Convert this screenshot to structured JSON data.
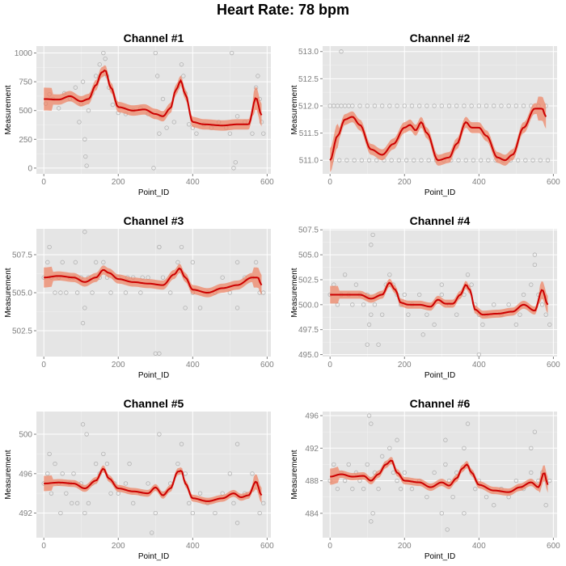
{
  "page": {
    "title": "Heart Rate: 78 bpm"
  },
  "style": {
    "panel_bg": "#e5e5e5",
    "grid_major": "#ffffff",
    "point_color": "#b3b3b3",
    "ribbon_color": "#f08060",
    "line_color": "#cc0000"
  },
  "chart_data": [
    {
      "type": "scatter",
      "title": "Channel #1",
      "xlabel": "Point_ID",
      "ylabel": "Measurement",
      "xlim": [
        -20,
        610
      ],
      "ylim": [
        -50,
        1060
      ],
      "x_ticks": [
        0,
        200,
        400,
        600
      ],
      "y_ticks": [
        0,
        250,
        500,
        750,
        1000
      ],
      "y_tick_labels": [
        "0",
        "250",
        "500",
        "750",
        "1000"
      ],
      "smooth": {
        "x": [
          0,
          40,
          70,
          100,
          120,
          140,
          155,
          165,
          180,
          200,
          240,
          270,
          300,
          320,
          340,
          355,
          368,
          380,
          400,
          430,
          480,
          520,
          550,
          570,
          585
        ],
        "y": [
          600,
          595,
          625,
          580,
          600,
          720,
          830,
          850,
          700,
          530,
          500,
          510,
          470,
          450,
          520,
          680,
          760,
          640,
          400,
          380,
          370,
          380,
          380,
          610,
          460
        ]
      },
      "ribbon_halfwidth": 45,
      "points": {
        "x": [
          5,
          15,
          25,
          40,
          55,
          70,
          85,
          95,
          100,
          105,
          110,
          112,
          115,
          120,
          130,
          140,
          150,
          160,
          165,
          170,
          175,
          185,
          200,
          220,
          240,
          260,
          280,
          295,
          300,
          305,
          310,
          315,
          320,
          330,
          350,
          360,
          370,
          375,
          380,
          390,
          400,
          410,
          430,
          450,
          470,
          490,
          500,
          505,
          510,
          515,
          520,
          540,
          560,
          570,
          575,
          580,
          585,
          590
        ],
        "y": [
          560,
          640,
          600,
          520,
          650,
          600,
          700,
          400,
          560,
          750,
          250,
          100,
          20,
          500,
          650,
          800,
          900,
          1000,
          950,
          800,
          700,
          550,
          480,
          470,
          500,
          520,
          470,
          0,
          1000,
          800,
          300,
          450,
          600,
          350,
          400,
          700,
          900,
          800,
          650,
          380,
          350,
          300,
          380,
          350,
          400,
          350,
          300,
          1000,
          0,
          50,
          450,
          400,
          300,
          700,
          800,
          600,
          400,
          300
        ]
      }
    },
    {
      "type": "scatter",
      "title": "Channel #2",
      "xlabel": "Point_ID",
      "ylabel": "Measurement",
      "xlim": [
        -20,
        610
      ],
      "ylim": [
        510.75,
        513.1
      ],
      "x_ticks": [
        0,
        200,
        400,
        600
      ],
      "y_ticks": [
        511.0,
        511.5,
        512.0,
        512.5,
        513.0
      ],
      "y_tick_labels": [
        "511.0",
        "511.5",
        "512.0",
        "512.5",
        "513.0"
      ],
      "smooth": {
        "x": [
          0,
          20,
          40,
          60,
          80,
          110,
          140,
          170,
          200,
          215,
          230,
          245,
          260,
          290,
          320,
          340,
          365,
          380,
          400,
          420,
          450,
          470,
          490,
          520,
          550,
          570,
          580
        ],
        "y": [
          511.0,
          511.45,
          511.75,
          511.8,
          511.65,
          511.2,
          511.1,
          511.3,
          511.6,
          511.65,
          511.55,
          511.7,
          511.5,
          511.0,
          511.05,
          511.3,
          511.7,
          511.6,
          511.6,
          511.45,
          511.05,
          511.0,
          511.1,
          511.6,
          511.95,
          511.95,
          511.8
        ]
      },
      "ribbon_halfwidth": 0.1,
      "points": {
        "x": [
          0,
          10,
          20,
          30,
          40,
          50,
          60,
          80,
          100,
          120,
          140,
          160,
          180,
          200,
          220,
          240,
          260,
          280,
          300,
          320,
          340,
          360,
          380,
          400,
          420,
          440,
          460,
          480,
          500,
          520,
          540,
          560,
          580,
          5,
          25,
          45,
          65,
          85,
          105,
          125,
          145,
          165,
          185,
          205,
          225,
          245,
          265,
          285,
          305,
          325,
          345,
          365,
          385,
          405,
          425,
          445,
          465,
          485,
          505,
          525,
          545,
          565,
          585,
          30
        ],
        "y": [
          512,
          512,
          512,
          512,
          512,
          512,
          512,
          512,
          512,
          512,
          512,
          512,
          512,
          512,
          512,
          512,
          512,
          512,
          512,
          512,
          512,
          512,
          512,
          512,
          512,
          512,
          512,
          512,
          512,
          512,
          512,
          512,
          512,
          511,
          511,
          511,
          511,
          511,
          511,
          511,
          511,
          511,
          511,
          511,
          511,
          511,
          511,
          511,
          511,
          511,
          511,
          511,
          511,
          511,
          511,
          511,
          511,
          511,
          511,
          511,
          511,
          511,
          511,
          513
        ]
      }
    },
    {
      "type": "scatter",
      "title": "Channel #3",
      "xlabel": "Point_ID",
      "ylabel": "Measurement",
      "xlim": [
        -20,
        610
      ],
      "ylim": [
        500.8,
        509.2
      ],
      "x_ticks": [
        0,
        200,
        400,
        600
      ],
      "y_ticks": [
        502.5,
        505.0,
        507.5
      ],
      "y_tick_labels": [
        "502.5",
        "505.0",
        "507.5"
      ],
      "smooth": {
        "x": [
          0,
          40,
          80,
          110,
          140,
          160,
          175,
          200,
          240,
          280,
          320,
          350,
          365,
          380,
          400,
          440,
          480,
          520,
          560,
          575,
          585
        ],
        "y": [
          506.0,
          506.1,
          506.0,
          505.7,
          506.0,
          506.5,
          506.3,
          505.9,
          505.7,
          505.6,
          505.5,
          506.2,
          506.6,
          506.0,
          505.2,
          505.0,
          505.3,
          505.5,
          506.0,
          506.0,
          505.5
        ]
      },
      "ribbon_halfwidth": 0.3,
      "points": {
        "x": [
          0,
          10,
          20,
          30,
          40,
          50,
          60,
          70,
          80,
          90,
          100,
          110,
          120,
          130,
          140,
          150,
          160,
          170,
          180,
          190,
          200,
          220,
          240,
          260,
          280,
          300,
          310,
          320,
          340,
          360,
          370,
          380,
          400,
          420,
          440,
          460,
          480,
          500,
          520,
          540,
          560,
          570,
          580,
          590,
          105,
          110,
          310,
          310,
          380,
          400,
          520,
          15,
          45,
          85,
          225,
          265
        ],
        "y": [
          506,
          507,
          506,
          505,
          506,
          507,
          505,
          506,
          506,
          505,
          506,
          509,
          506,
          505,
          507,
          506,
          507,
          506,
          505,
          506,
          506,
          505,
          506,
          505,
          506,
          501,
          508,
          506,
          505,
          507,
          508,
          506,
          505,
          504,
          505,
          505,
          506,
          505,
          507,
          506,
          506,
          507,
          505,
          505,
          503,
          504,
          501,
          508,
          504,
          507,
          504,
          508,
          505,
          507,
          506,
          506
        ]
      }
    },
    {
      "type": "scatter",
      "title": "Channel #4",
      "xlabel": "Point_ID",
      "ylabel": "Measurement",
      "xlim": [
        -20,
        610
      ],
      "ylim": [
        494.8,
        507.6
      ],
      "x_ticks": [
        0,
        200,
        400,
        600
      ],
      "y_ticks": [
        495.0,
        497.5,
        500.0,
        502.5,
        505.0,
        507.5
      ],
      "y_tick_labels": [
        "495.0",
        "497.5",
        "500.0",
        "502.5",
        "505.0",
        "507.5"
      ],
      "smooth": {
        "x": [
          0,
          40,
          80,
          110,
          140,
          160,
          175,
          190,
          210,
          240,
          270,
          290,
          310,
          330,
          350,
          365,
          375,
          390,
          410,
          450,
          490,
          520,
          550,
          570,
          585
        ],
        "y": [
          501.0,
          501.0,
          501.0,
          500.6,
          501.0,
          502.2,
          501.5,
          500.2,
          500.0,
          500.0,
          499.8,
          500.5,
          500.1,
          500.1,
          501.0,
          502.0,
          501.5,
          499.5,
          499.0,
          499.1,
          499.3,
          500.0,
          499.4,
          501.5,
          500.0
        ]
      },
      "ribbon_halfwidth": 0.4,
      "points": {
        "x": [
          0,
          10,
          20,
          30,
          40,
          50,
          60,
          70,
          80,
          90,
          100,
          110,
          115,
          120,
          130,
          140,
          150,
          160,
          170,
          180,
          190,
          200,
          210,
          220,
          240,
          260,
          280,
          300,
          320,
          340,
          360,
          370,
          380,
          390,
          400,
          410,
          420,
          440,
          460,
          480,
          500,
          510,
          520,
          540,
          550,
          560,
          570,
          580,
          590,
          100,
          105,
          110,
          130,
          400,
          550,
          250,
          300
        ],
        "y": [
          501,
          502,
          500,
          501,
          503,
          501,
          500,
          502,
          501,
          500,
          501,
          499,
          507,
          500,
          501,
          499,
          502,
          503,
          502,
          501,
          500,
          501,
          499,
          500,
          501,
          499,
          498,
          501,
          500,
          499,
          501,
          503,
          502,
          500,
          499,
          498,
          499,
          500,
          499,
          500,
          498,
          499,
          501,
          502,
          505,
          501,
          500,
          499,
          498,
          496,
          498,
          506,
          496,
          495,
          504,
          497,
          502
        ]
      }
    },
    {
      "type": "scatter",
      "title": "Channel #5",
      "xlabel": "Point_ID",
      "ylabel": "Measurement",
      "xlim": [
        -20,
        610
      ],
      "ylim": [
        489.5,
        502.3
      ],
      "x_ticks": [
        0,
        200,
        400,
        600
      ],
      "y_ticks": [
        492,
        496,
        500
      ],
      "y_tick_labels": [
        "492",
        "496",
        "500"
      ],
      "smooth": {
        "x": [
          0,
          40,
          80,
          110,
          140,
          160,
          175,
          200,
          240,
          280,
          300,
          320,
          340,
          360,
          370,
          380,
          400,
          440,
          480,
          510,
          530,
          550,
          570,
          585
        ],
        "y": [
          495.0,
          495.1,
          495.0,
          494.5,
          495.3,
          496.5,
          495.5,
          494.5,
          494.2,
          494.0,
          494.6,
          493.8,
          494.5,
          496.2,
          496.3,
          495.0,
          493.5,
          493.2,
          493.5,
          494.0,
          493.6,
          493.8,
          495.2,
          493.8
        ]
      },
      "ribbon_halfwidth": 0.35,
      "points": {
        "x": [
          0,
          10,
          20,
          30,
          40,
          50,
          60,
          70,
          80,
          90,
          100,
          105,
          110,
          115,
          120,
          130,
          140,
          150,
          160,
          170,
          180,
          190,
          200,
          220,
          240,
          260,
          280,
          300,
          310,
          320,
          340,
          360,
          370,
          380,
          390,
          400,
          420,
          440,
          460,
          480,
          500,
          510,
          520,
          540,
          560,
          570,
          580,
          590,
          15,
          45,
          75,
          230,
          290,
          520
        ],
        "y": [
          495,
          496,
          494,
          497,
          495,
          496,
          494,
          495,
          496,
          493,
          495,
          501,
          492,
          500,
          493,
          495,
          497,
          496,
          498,
          497,
          494,
          495,
          494,
          495,
          493,
          494,
          495,
          492,
          500,
          494,
          495,
          497,
          499,
          496,
          493,
          492,
          494,
          493,
          492,
          494,
          496,
          493,
          499,
          494,
          496,
          495,
          492,
          493,
          498,
          492,
          493,
          497,
          490,
          491
        ]
      }
    },
    {
      "type": "scatter",
      "title": "Channel #6",
      "xlabel": "Point_ID",
      "ylabel": "Measurement",
      "xlim": [
        -20,
        610
      ],
      "ylim": [
        481.0,
        496.5
      ],
      "x_ticks": [
        0,
        200,
        400,
        600
      ],
      "y_ticks": [
        484,
        488,
        492,
        496
      ],
      "y_tick_labels": [
        "484",
        "488",
        "492",
        "496"
      ],
      "smooth": {
        "x": [
          0,
          30,
          60,
          90,
          110,
          130,
          150,
          165,
          180,
          200,
          240,
          270,
          300,
          320,
          340,
          355,
          368,
          380,
          400,
          440,
          480,
          510,
          540,
          560,
          575,
          585
        ],
        "y": [
          488.5,
          488.8,
          488.5,
          488.6,
          488.0,
          488.8,
          490.0,
          490.5,
          489.0,
          488.0,
          487.8,
          487.2,
          487.8,
          487.4,
          488.3,
          489.5,
          490.0,
          489.0,
          487.5,
          486.8,
          486.6,
          487.2,
          487.8,
          487.2,
          489.0,
          487.5
        ]
      },
      "ribbon_halfwidth": 0.45,
      "points": {
        "x": [
          0,
          10,
          20,
          30,
          40,
          50,
          60,
          70,
          80,
          90,
          100,
          110,
          115,
          120,
          130,
          140,
          150,
          160,
          170,
          180,
          190,
          200,
          220,
          240,
          260,
          280,
          300,
          310,
          320,
          330,
          340,
          360,
          370,
          380,
          390,
          400,
          420,
          440,
          460,
          480,
          500,
          520,
          540,
          550,
          560,
          570,
          580,
          590,
          105,
          110,
          180,
          310,
          315,
          360,
          540
        ],
        "y": [
          488,
          490,
          487,
          489,
          488,
          490,
          487,
          489,
          488,
          487,
          490,
          495,
          484,
          489,
          487,
          491,
          490,
          492,
          489,
          488,
          487,
          489,
          487,
          488,
          486,
          489,
          484,
          490,
          488,
          486,
          489,
          492,
          495,
          489,
          487,
          488,
          486,
          485,
          487,
          486,
          488,
          487,
          489,
          494,
          488,
          489,
          485,
          488,
          496,
          483,
          493,
          493,
          482,
          484,
          492
        ]
      }
    }
  ]
}
